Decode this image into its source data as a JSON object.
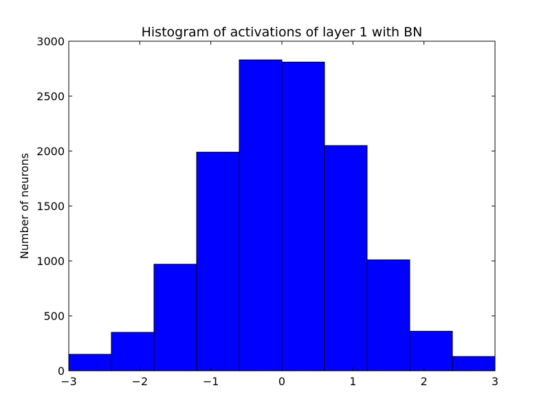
{
  "chart_data": {
    "type": "bar",
    "title": "Histogram of activations of layer 1  with BN",
    "xlabel": "",
    "ylabel": "Number of neurons",
    "bin_edges": [
      -3,
      -2.4,
      -1.8,
      -1.2,
      -0.6,
      0,
      0.6,
      1.2,
      1.8,
      2.4,
      3
    ],
    "values": [
      150,
      350,
      970,
      1990,
      2830,
      2810,
      2050,
      1010,
      360,
      130
    ],
    "xlim": [
      -3,
      3
    ],
    "ylim": [
      0,
      3000
    ],
    "xticks": [
      -3,
      -2,
      -1,
      0,
      1,
      2,
      3
    ],
    "xtick_labels": [
      "−3",
      "−2",
      "−1",
      "0",
      "1",
      "2",
      "3"
    ],
    "yticks": [
      0,
      500,
      1000,
      1500,
      2000,
      2500,
      3000
    ],
    "ytick_labels": [
      "0",
      "500",
      "1000",
      "1500",
      "2000",
      "2500",
      "3000"
    ],
    "bar_color": "#0000ff",
    "edge_color": "#000000",
    "grid": false,
    "legend": "none"
  }
}
